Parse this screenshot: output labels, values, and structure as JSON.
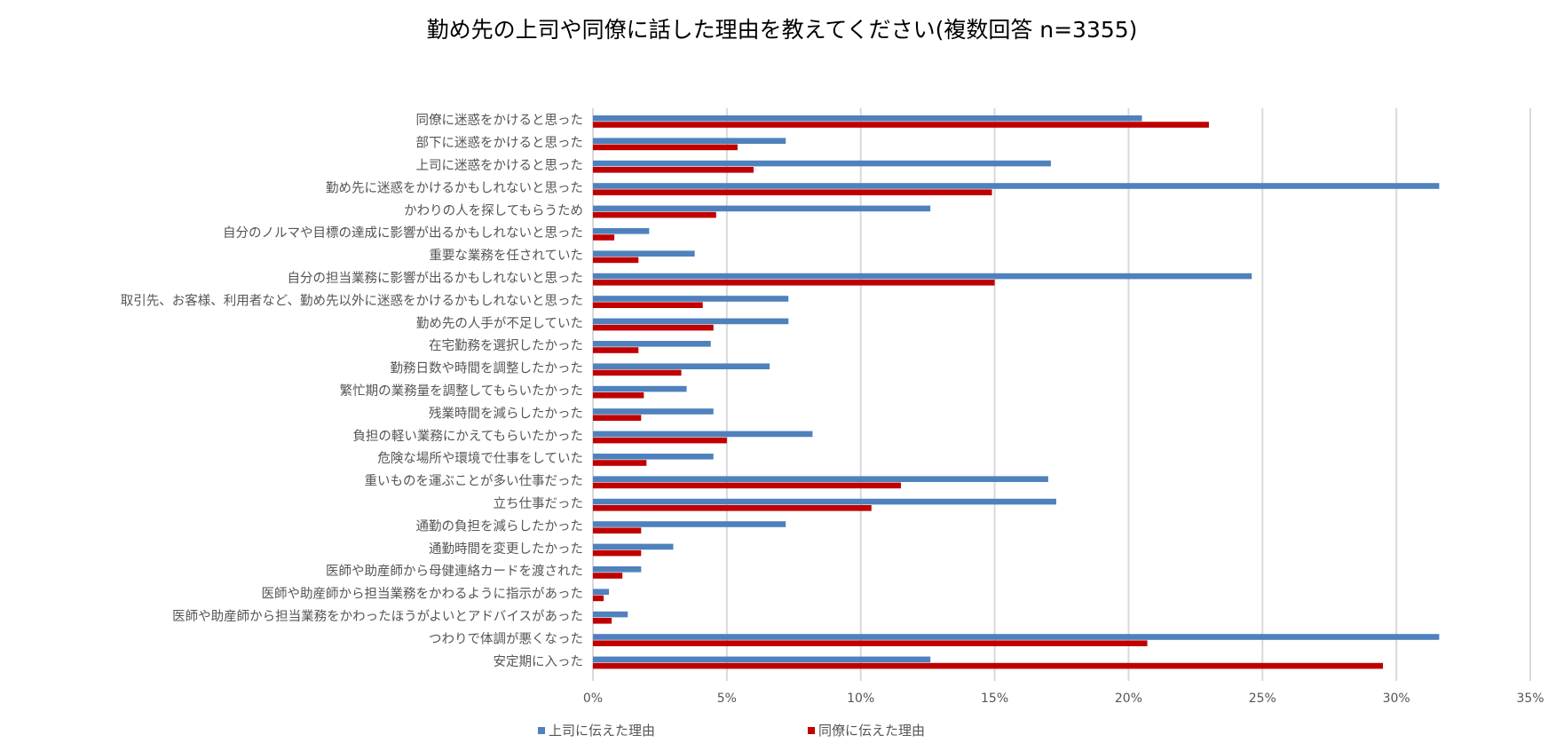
{
  "chart_data": {
    "type": "bar",
    "orientation": "horizontal",
    "title": "勤め先の上司や同僚に話した理由を教えてください(複数回答 n=3355)",
    "categories": [
      "同僚に迷惑をかけると思った",
      "部下に迷惑をかけると思った",
      "上司に迷惑をかけると思った",
      "勤め先に迷惑をかけるかもしれないと思った",
      "かわりの人を探してもらうため",
      "自分のノルマや目標の達成に影響が出るかもしれないと思った",
      "重要な業務を任されていた",
      "自分の担当業務に影響が出るかもしれないと思った",
      "取引先、お客様、利用者など、勤め先以外に迷惑をかけるかもしれないと思った",
      "勤め先の人手が不足していた",
      "在宅勤務を選択したかった",
      "勤務日数や時間を調整したかった",
      "繁忙期の業務量を調整してもらいたかった",
      "残業時間を減らしたかった",
      "負担の軽い業務にかえてもらいたかった",
      "危険な場所や環境で仕事をしていた",
      "重いものを運ぶことが多い仕事だった",
      "立ち仕事だった",
      "通勤の負担を減らしたかった",
      "通勤時間を変更したかった",
      "医師や助産師から母健連絡カードを渡された",
      "医師や助産師から担当業務をかわるように指示があった",
      "医師や助産師から担当業務をかわったほうがよいとアドバイスがあった",
      "つわりで体調が悪くなった",
      "安定期に入った"
    ],
    "series": [
      {
        "name": "上司に伝えた理由",
        "color": "#4f81bd",
        "values": [
          20.5,
          7.2,
          17.1,
          31.6,
          12.6,
          2.1,
          3.8,
          24.6,
          7.3,
          7.3,
          4.4,
          6.6,
          3.5,
          4.5,
          8.2,
          4.5,
          17.0,
          17.3,
          7.2,
          3.0,
          1.8,
          0.6,
          1.3,
          31.6,
          12.6
        ]
      },
      {
        "name": "同僚に伝えた理由",
        "color": "#c00000",
        "values": [
          23.0,
          5.4,
          6.0,
          14.9,
          4.6,
          0.8,
          1.7,
          15.0,
          4.1,
          4.5,
          1.7,
          3.3,
          1.9,
          1.8,
          5.0,
          2.0,
          11.5,
          10.4,
          1.8,
          1.8,
          1.1,
          0.4,
          0.7,
          20.7,
          29.5
        ]
      }
    ],
    "xlim": [
      0,
      35
    ],
    "xticks": [
      0,
      5,
      10,
      15,
      20,
      25,
      30,
      35
    ],
    "xtick_labels": [
      "0%",
      "5%",
      "10%",
      "15%",
      "20%",
      "25%",
      "30%",
      "35%"
    ],
    "grid": true,
    "legend_position": "bottom-left"
  }
}
